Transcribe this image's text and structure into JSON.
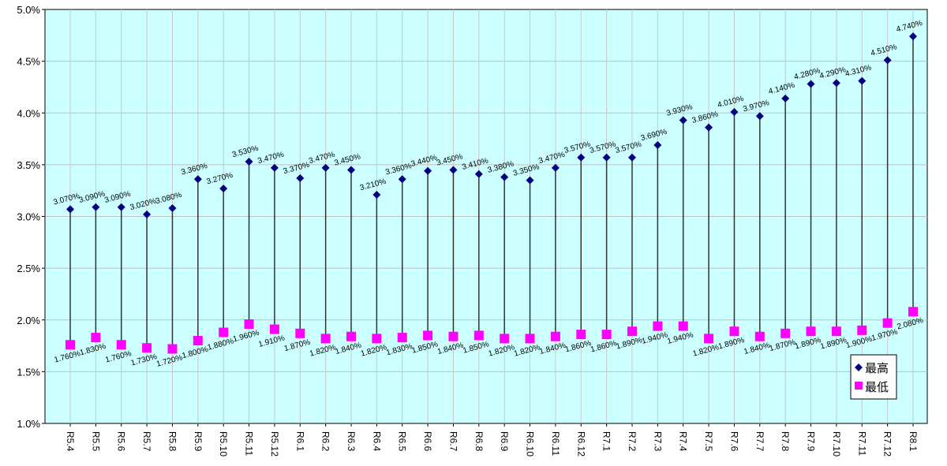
{
  "chart_data": {
    "type": "scatter",
    "title": "",
    "xlabel": "",
    "ylabel": "",
    "ylim": [
      1.0,
      5.0
    ],
    "yticks": [
      "1.0%",
      "1.5%",
      "2.0%",
      "2.5%",
      "3.0%",
      "3.5%",
      "4.0%",
      "4.5%",
      "5.0%"
    ],
    "grid": true,
    "legend_position": "bottom-right",
    "background": "#ccffff",
    "categories": [
      "R5.4",
      "R5.5",
      "R5.6",
      "R5.7",
      "R5.8",
      "R5.9",
      "R5.10",
      "R5.11",
      "R5.12",
      "R6.1",
      "R6.2",
      "R6.3",
      "R6.4",
      "R6.5",
      "R6.6",
      "R6.7",
      "R6.8",
      "R6.9",
      "R6.10",
      "R6.11",
      "R6.12",
      "R7.1",
      "R7.2",
      "R7.3",
      "R7.4",
      "R7.5",
      "R7.6",
      "R7.7",
      "R7.8",
      "R7.9",
      "R7.10",
      "R7.11",
      "R7.12",
      "R8.1"
    ],
    "series": [
      {
        "name": "最高",
        "marker": "diamond",
        "color": "#000080",
        "values": [
          3.07,
          3.09,
          3.09,
          3.02,
          3.08,
          3.36,
          3.27,
          3.53,
          3.47,
          3.37,
          3.47,
          3.45,
          3.21,
          3.36,
          3.44,
          3.45,
          3.41,
          3.38,
          3.35,
          3.47,
          3.57,
          3.57,
          3.57,
          3.69,
          3.93,
          3.86,
          4.01,
          3.97,
          4.14,
          4.28,
          4.29,
          4.31,
          4.51,
          4.74
        ]
      },
      {
        "name": "最低",
        "marker": "square",
        "color": "#ff00ff",
        "values": [
          1.76,
          1.83,
          1.76,
          1.73,
          1.72,
          1.8,
          1.88,
          1.96,
          1.91,
          1.87,
          1.82,
          1.84,
          1.82,
          1.83,
          1.85,
          1.84,
          1.85,
          1.82,
          1.82,
          1.84,
          1.86,
          1.86,
          1.89,
          1.94,
          1.94,
          1.82,
          1.89,
          1.84,
          1.87,
          1.89,
          1.89,
          1.9,
          1.97,
          2.08
        ]
      }
    ]
  }
}
